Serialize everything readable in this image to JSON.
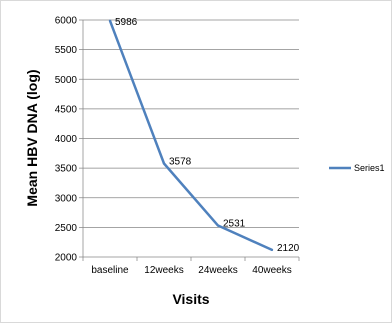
{
  "chart_data": {
    "type": "line",
    "categories": [
      "baseline",
      "12weeks",
      "24weeks",
      "40weeks"
    ],
    "series": [
      {
        "name": "Series1",
        "values": [
          5986,
          3578,
          2531,
          2120
        ]
      }
    ],
    "data_labels": [
      "5986",
      "3578",
      "2531",
      "2120"
    ],
    "xlabel": "Visits",
    "ylabel": "Mean HBV DNA (log)",
    "ylim": [
      2000,
      6000
    ],
    "yticks": [
      2000,
      2500,
      3000,
      3500,
      4000,
      4500,
      5000,
      5500,
      6000
    ],
    "ytick_labels": [
      "2000",
      "2500",
      "3000",
      "3500",
      "4000",
      "4500",
      "5000",
      "5500",
      "6000"
    ],
    "grid": true,
    "legend_position": "right",
    "colors": {
      "series": "#4f81bd",
      "grid": "#868686",
      "axis": "#868686"
    }
  }
}
